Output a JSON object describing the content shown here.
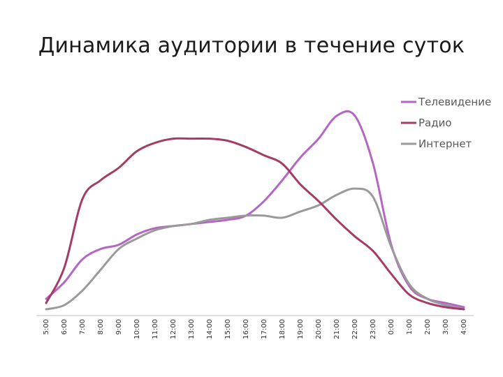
{
  "slide": {
    "title": "Динамика аудитории в течение суток"
  },
  "chart_data": {
    "type": "line",
    "title": "Динамика аудитории в течение суток",
    "xlabel": "",
    "ylabel": "",
    "categories": [
      "5:00",
      "6:00",
      "7:00",
      "8:00",
      "9:00",
      "10:00",
      "11:00",
      "12:00",
      "13:00",
      "14:00",
      "15:00",
      "16:00",
      "17:00",
      "18:00",
      "19:00",
      "20:00",
      "21:00",
      "22:00",
      "23:00",
      "0:00",
      "1:00",
      "2:00",
      "3:00",
      "4:00"
    ],
    "ylim": [
      0,
      100
    ],
    "grid": false,
    "y_axis_visible": false,
    "legend_position": "top-right",
    "series": [
      {
        "name": "Телевидение",
        "color": "#b565c4",
        "values": [
          5,
          13,
          24,
          29,
          31,
          36,
          39,
          40,
          41,
          42,
          43,
          45,
          52,
          62,
          73,
          82,
          93,
          93,
          70,
          31,
          11,
          5,
          3,
          1
        ]
      },
      {
        "name": "Радио",
        "color": "#a43c68",
        "values": [
          3,
          20,
          53,
          62,
          68,
          76,
          80,
          82,
          82,
          82,
          81,
          78,
          74,
          70,
          60,
          52,
          43,
          35,
          28,
          17,
          7,
          3,
          1,
          0
        ]
      },
      {
        "name": "Интернет",
        "color": "#9a9a9a",
        "values": [
          0,
          2,
          9,
          19,
          29,
          34,
          38,
          40,
          41,
          43,
          44,
          45,
          45,
          44,
          47,
          50,
          55,
          58,
          54,
          30,
          12,
          5,
          2,
          0
        ]
      }
    ]
  }
}
